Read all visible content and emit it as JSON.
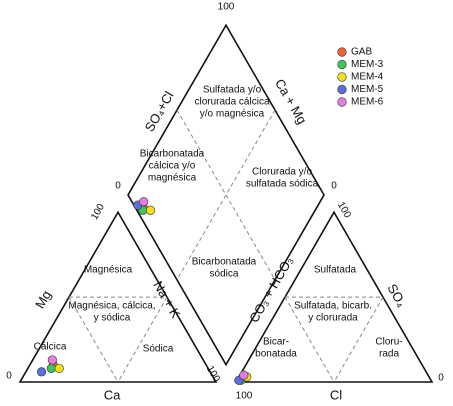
{
  "chart_data": {
    "type": "piper",
    "axis_labels": {
      "so4_cl": "SO₄+Cl",
      "ca_mg": "Ca + Mg",
      "co3_hco3": "CO₃ + HCO₃",
      "na_k": "Na + K",
      "mg": "Mg",
      "ca": "Ca",
      "cl": "Cl",
      "so4": "SO₄"
    },
    "corner_labels": [
      100,
      0,
      0,
      100,
      0,
      100,
      100,
      0,
      100
    ],
    "regions": {
      "diamond": [
        [
          "Sulfatada y/o",
          "clorurada cálcica",
          "y/o magnésica"
        ],
        [
          "Bicarbonatada",
          "cálcica y/o",
          "magnésica"
        ],
        [
          "Clorurada y/o",
          "sulfatada sódica"
        ],
        [
          "Bicarbonatada",
          "sódica"
        ]
      ],
      "cations": [
        [
          "Magnésica"
        ],
        [
          "Magnésica, cálcica,",
          "y sódica"
        ],
        [
          "Cálcica"
        ],
        [
          "Sódica"
        ]
      ],
      "anions": [
        [
          "Sulfatada"
        ],
        [
          "Sulfatada, bicarb.",
          "y clorurada"
        ],
        [
          "Bicar-",
          "bonatada"
        ],
        [
          "Cloru-",
          "rada"
        ]
      ]
    },
    "series": [
      {
        "name": "GAB",
        "color": "#e8663a",
        "ca": 78,
        "mg": 10,
        "na_k": 12,
        "hco3": 96,
        "so4": 2,
        "cl": 2
      },
      {
        "name": "MEM-3",
        "color": "#43c45a",
        "ca": 80,
        "mg": 8,
        "na_k": 12,
        "hco3": 97,
        "so4": 1,
        "cl": 2
      },
      {
        "name": "MEM-4",
        "color": "#f2e01f",
        "ca": 76,
        "mg": 8,
        "na_k": 16,
        "hco3": 93,
        "so4": 3,
        "cl": 4
      },
      {
        "name": "MEM-5",
        "color": "#5b6fd6",
        "ca": 86,
        "mg": 6,
        "na_k": 8,
        "hco3": 98,
        "so4": 1,
        "cl": 1
      },
      {
        "name": "MEM-6",
        "color": "#e47de0",
        "ca": 77,
        "mg": 13,
        "na_k": 10,
        "hco3": 94,
        "so4": 4,
        "cl": 2
      }
    ]
  }
}
